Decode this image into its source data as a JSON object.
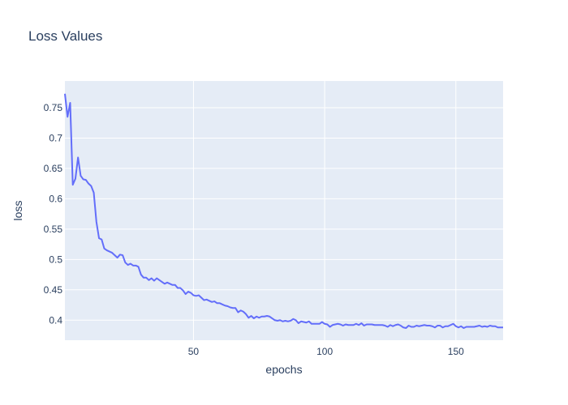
{
  "chart_data": {
    "type": "line",
    "title": "Loss Values",
    "xlabel": "epochs",
    "ylabel": "loss",
    "xlim": [
      1,
      168
    ],
    "ylim": [
      0.367,
      0.794
    ],
    "x_ticks": [
      50,
      100,
      150
    ],
    "x_tick_labels": [
      "50",
      "100",
      "150"
    ],
    "y_ticks": [
      0.4,
      0.45,
      0.5,
      0.55,
      0.6,
      0.65,
      0.7,
      0.75
    ],
    "y_tick_labels": [
      "0.4",
      "0.45",
      "0.5",
      "0.55",
      "0.6",
      "0.65",
      "0.7",
      "0.75"
    ],
    "grid": true,
    "colors": {
      "plot_bg": "#e5ecf6",
      "grid": "#ffffff",
      "line": "#636efa",
      "text": "#2a3f5f"
    },
    "series": [
      {
        "x": [
          1,
          2,
          3,
          4,
          5,
          6,
          7,
          8,
          9,
          10,
          11,
          12,
          13,
          14,
          15,
          16,
          17,
          18,
          19,
          20,
          21,
          22,
          23,
          24,
          25,
          26,
          27,
          28,
          29,
          30,
          31,
          32,
          33,
          34,
          35,
          36,
          37,
          38,
          39,
          40,
          41,
          42,
          43,
          44,
          45,
          46,
          47,
          48,
          49,
          50,
          51,
          52,
          53,
          54,
          55,
          56,
          57,
          58,
          59,
          60,
          61,
          62,
          63,
          64,
          65,
          66,
          67,
          68,
          69,
          70,
          71,
          72,
          73,
          74,
          75,
          76,
          77,
          78,
          79,
          80,
          81,
          82,
          83,
          84,
          85,
          86,
          87,
          88,
          89,
          90,
          91,
          92,
          93,
          94,
          95,
          96,
          97,
          98,
          99,
          100,
          101,
          102,
          103,
          104,
          105,
          106,
          107,
          108,
          109,
          110,
          111,
          112,
          113,
          114,
          115,
          116,
          117,
          118,
          119,
          120,
          121,
          122,
          123,
          124,
          125,
          126,
          127,
          128,
          129,
          130,
          131,
          132,
          133,
          134,
          135,
          136,
          137,
          138,
          139,
          140,
          141,
          142,
          143,
          144,
          145,
          146,
          147,
          148,
          149,
          150,
          151,
          152,
          153,
          154,
          155,
          156,
          157,
          158,
          159,
          160,
          161,
          162,
          163,
          164,
          165,
          166,
          167,
          168
        ],
        "y": [
          0.773,
          0.735,
          0.758,
          0.623,
          0.633,
          0.668,
          0.638,
          0.632,
          0.631,
          0.625,
          0.621,
          0.61,
          0.562,
          0.535,
          0.533,
          0.518,
          0.515,
          0.513,
          0.511,
          0.507,
          0.503,
          0.508,
          0.507,
          0.495,
          0.491,
          0.493,
          0.49,
          0.49,
          0.488,
          0.475,
          0.47,
          0.47,
          0.466,
          0.469,
          0.465,
          0.469,
          0.466,
          0.463,
          0.46,
          0.462,
          0.46,
          0.458,
          0.458,
          0.453,
          0.453,
          0.449,
          0.443,
          0.447,
          0.445,
          0.441,
          0.44,
          0.441,
          0.437,
          0.433,
          0.434,
          0.432,
          0.43,
          0.431,
          0.428,
          0.428,
          0.426,
          0.424,
          0.423,
          0.421,
          0.42,
          0.42,
          0.413,
          0.416,
          0.414,
          0.41,
          0.404,
          0.407,
          0.403,
          0.406,
          0.404,
          0.406,
          0.406,
          0.407,
          0.406,
          0.403,
          0.4,
          0.399,
          0.4,
          0.398,
          0.399,
          0.398,
          0.399,
          0.402,
          0.4,
          0.395,
          0.398,
          0.397,
          0.396,
          0.398,
          0.394,
          0.394,
          0.394,
          0.394,
          0.397,
          0.394,
          0.393,
          0.389,
          0.392,
          0.393,
          0.394,
          0.393,
          0.391,
          0.393,
          0.392,
          0.392,
          0.392,
          0.394,
          0.392,
          0.395,
          0.391,
          0.393,
          0.393,
          0.393,
          0.392,
          0.392,
          0.392,
          0.392,
          0.391,
          0.389,
          0.392,
          0.39,
          0.392,
          0.393,
          0.391,
          0.388,
          0.387,
          0.391,
          0.389,
          0.389,
          0.391,
          0.39,
          0.391,
          0.392,
          0.391,
          0.391,
          0.39,
          0.388,
          0.391,
          0.391,
          0.388,
          0.39,
          0.39,
          0.392,
          0.394,
          0.39,
          0.388,
          0.39,
          0.387,
          0.389,
          0.389,
          0.389,
          0.389,
          0.39,
          0.391,
          0.389,
          0.39,
          0.389,
          0.391,
          0.39,
          0.39,
          0.388,
          0.388,
          0.388
        ]
      }
    ]
  }
}
